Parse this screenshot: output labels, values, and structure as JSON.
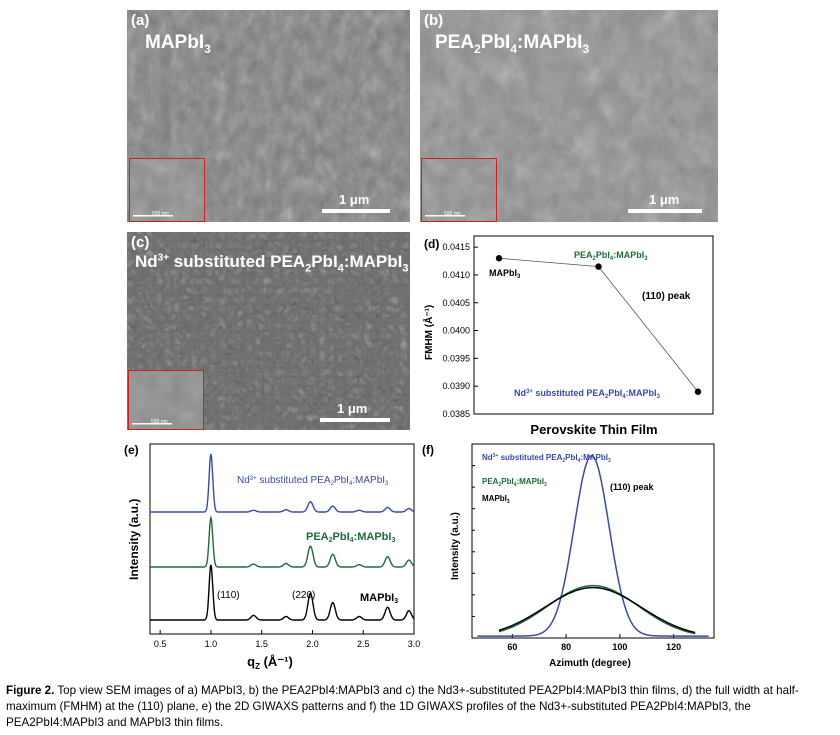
{
  "panels": {
    "a": {
      "letter": "(a)",
      "title_main": "MAPbI",
      "title_sub": "3",
      "scale_label": "1 μm",
      "inset_scale": "500 nm"
    },
    "b": {
      "letter": "(b)",
      "title_p1": "PEA",
      "title_s1": "2",
      "title_p2": "PbI",
      "title_s2": "4",
      "title_p3": ":MAPbI",
      "title_s3": "3",
      "scale_label": "1 μm",
      "inset_scale": "500 nm"
    },
    "c": {
      "letter": "(c)",
      "title_p0": "Nd",
      "title_sup": "3+",
      "title_p1": " substituted PEA",
      "title_s1": "2",
      "title_p2": "PbI",
      "title_s2": "4",
      "title_p3": ":MAPbI",
      "title_s3": "3",
      "scale_label": "1 μm",
      "inset_scale": "500 nm"
    },
    "d": {
      "letter": "(d)",
      "xlabel": "Perovskite Thin Film",
      "ylabel": "FMHM (Å⁻¹)",
      "annotation": "(110) peak"
    },
    "e": {
      "letter": "(e)",
      "xlabel_main": "q",
      "xlabel_sub": "Z",
      "xlabel_unit": " (Å⁻¹)",
      "ylabel": "Intensity (a.u.)",
      "peak1": "(110)",
      "peak2": "(220)"
    },
    "f": {
      "letter": "(f)",
      "xlabel": "Azimuth (degree)",
      "ylabel": "Intensity (a.u.)",
      "annotation": "(110) peak"
    }
  },
  "labels": {
    "mapbi3": "MAPbI3",
    "pea": "PEA2PbI4:MAPbI3",
    "nd": "Nd3+ substituted PEA2PbI4:MAPbI3"
  },
  "colors": {
    "mapbi3": "#000000",
    "pea": "#1f6b3a",
    "nd": "#3a4aa8"
  },
  "caption": {
    "label": "Figure 2.",
    "text": "Top view SEM images of a) MAPbI3, b) the PEA2PbI4:MAPbI3 and c) the Nd3+-substituted PEA2PbI4:MAPbI3 thin films, d) the full width at half-maximum (FMHM) at the (110) plane, e) the 2D GIWAXS patterns and f) the 1D GIWAXS profiles of the Nd3+-substituted PEA2PbI4:MAPbI3, the PEA2PbI4:MAPbI3 and MAPbI3 thin films."
  },
  "chart_data": [
    {
      "panel": "d",
      "type": "line",
      "categories": [
        "MAPbI3",
        "PEA2PbI4:MAPbI3",
        "Nd3+ substituted PEA2PbI4:MAPbI3"
      ],
      "values": [
        0.0413,
        0.04115,
        0.0389
      ],
      "ylabel": "FMHM (Å⁻¹)",
      "xlabel": "Perovskite Thin Film",
      "ylim": [
        0.0385,
        0.0417
      ],
      "yticks": [
        "0.0385",
        "0.0390",
        "0.0395",
        "0.0400",
        "0.0405",
        "0.0410",
        "0.0415"
      ]
    },
    {
      "panel": "e",
      "type": "line",
      "xlim": [
        0.4,
        3.0
      ],
      "xticks": [
        "0.5",
        "1.0",
        "1.5",
        "2.0",
        "2.5",
        "3.0"
      ],
      "xlabel": "qZ (Å⁻¹)",
      "ylabel": "Intensity (a.u.)",
      "peaks": [
        {
          "q": 1.0,
          "h": [
            1.0,
            0.85,
            0.95
          ]
        },
        {
          "q": 1.42,
          "h": [
            0.03,
            0.05,
            0.08
          ]
        },
        {
          "q": 1.74,
          "h": [
            0.04,
            0.06,
            0.06
          ]
        },
        {
          "q": 1.98,
          "h": [
            0.18,
            0.36,
            0.46
          ]
        },
        {
          "q": 2.2,
          "h": [
            0.1,
            0.22,
            0.3
          ]
        },
        {
          "q": 2.46,
          "h": [
            0.03,
            0.04,
            0.06
          ]
        },
        {
          "q": 2.74,
          "h": [
            0.08,
            0.18,
            0.22
          ]
        },
        {
          "q": 2.95,
          "h": [
            0.06,
            0.12,
            0.16
          ]
        }
      ],
      "series_order": [
        "nd",
        "pea",
        "mapbi3"
      ]
    },
    {
      "panel": "f",
      "type": "line",
      "xlim": [
        45,
        135
      ],
      "xticks": [
        "60",
        "80",
        "100",
        "120"
      ],
      "xlabel": "Azimuth (degree)",
      "ylabel": "Intensity (a.u.)",
      "series": [
        {
          "key": "nd",
          "center": 89.5,
          "peak": 0.93,
          "width": 6.5,
          "base": 0.01
        },
        {
          "key": "pea",
          "center": 90,
          "peak": 0.27,
          "width": 17,
          "base": 0.0
        },
        {
          "key": "mapbi3",
          "center": 90,
          "peak": 0.26,
          "width": 18,
          "base": 0.0
        }
      ]
    }
  ]
}
